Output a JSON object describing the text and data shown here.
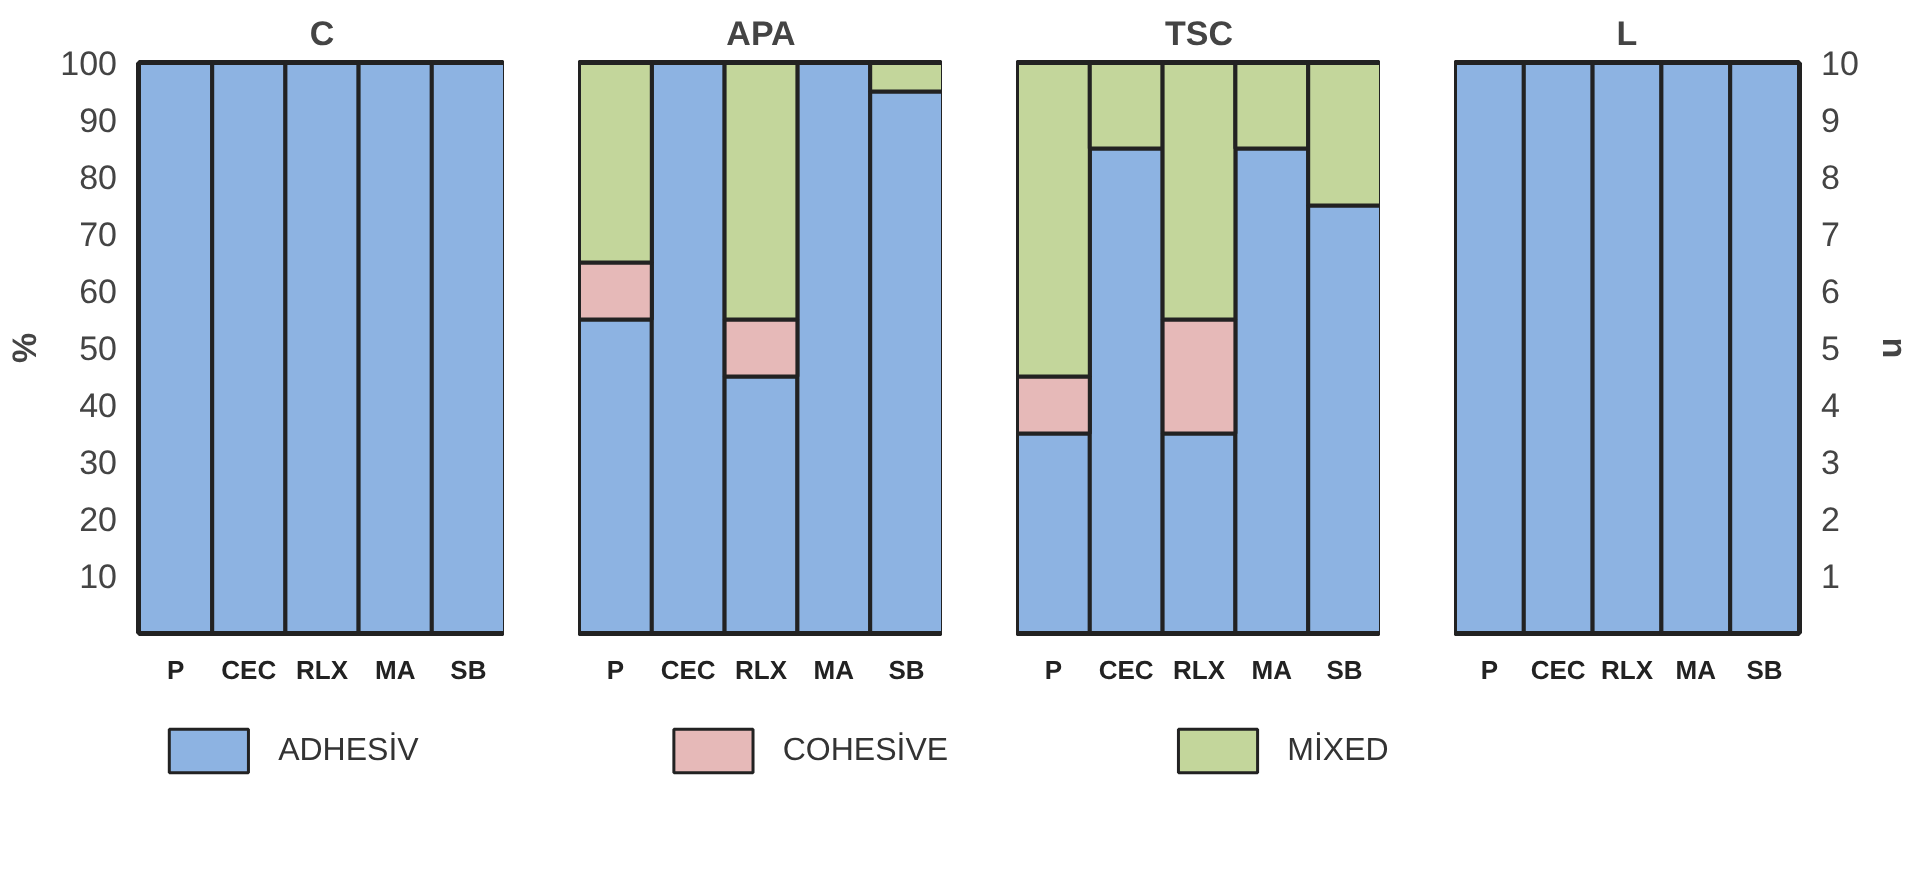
{
  "chart_data": [
    {
      "type": "bar",
      "title": "C",
      "ylabel": "%",
      "categories": [
        "P",
        "CEC",
        "RLX",
        "MA",
        "SB"
      ],
      "stacked": true,
      "ylim": [
        0,
        100
      ],
      "yticks": [
        10,
        20,
        30,
        40,
        50,
        60,
        70,
        80,
        90,
        100
      ],
      "series": [
        {
          "color": "#8db3e2",
          "values": [
            100,
            100,
            100,
            100,
            100
          ]
        }
      ]
    },
    {
      "type": "bar",
      "title": "APA",
      "categories": [
        "P",
        "CEC",
        "RLX",
        "MA",
        "SB"
      ],
      "stacked": true,
      "ylim": [
        0,
        100
      ],
      "tick_labels": "x",
      "legend": "bottom",
      "series": [
        {
          "name": "ADHESİV",
          "color": "#8db3e2",
          "values": [
            55,
            100,
            45,
            100,
            95
          ]
        },
        {
          "name": "COHESİVE",
          "color": "#e6b9b8",
          "values": [
            10,
            null,
            10,
            null,
            null
          ]
        },
        {
          "name": "MİXED",
          "color": "#c3d69b",
          "values": [
            35,
            null,
            45,
            null,
            5
          ]
        }
      ]
    },
    {
      "type": "bar",
      "title": "TSC",
      "categories": [
        "P",
        "CEC",
        "RLX",
        "MA",
        "SB"
      ],
      "stacked": true,
      "ylim": [
        0,
        100
      ],
      "tick_labels": "x",
      "series": [
        {
          "color": "#8db3e2",
          "values": [
            35,
            85,
            35,
            85,
            75
          ]
        },
        {
          "color": "#e6b9b8",
          "values": [
            10,
            null,
            20,
            null,
            null
          ]
        },
        {
          "color": "#c3d69b",
          "values": [
            55,
            15,
            45,
            15,
            25
          ]
        }
      ]
    },
    {
      "type": "bar",
      "title": "L",
      "y2label": "n",
      "categories": [
        "P",
        "CEC",
        "RLX",
        "MA",
        "SB"
      ],
      "stacked": true,
      "y2lim": [
        0,
        10
      ],
      "y2ticks": [
        1,
        2,
        3,
        4,
        5,
        6,
        7,
        8,
        9,
        10
      ],
      "series": [
        {
          "color": "#8db3e2",
          "axis": "y2",
          "values": [
            10,
            10,
            10,
            10,
            10
          ]
        }
      ]
    }
  ]
}
